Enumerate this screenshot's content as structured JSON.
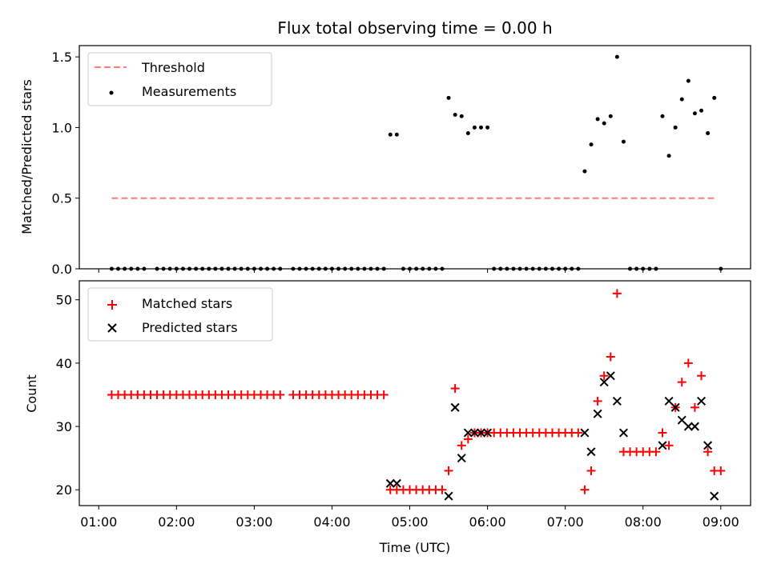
{
  "title": "Flux total observing time = 0.00 h",
  "top_panel": {
    "ylabel": "Matched/Predicted stars",
    "legend": {
      "threshold": "Threshold",
      "measurements": "Measurements"
    },
    "yticks": [
      "0.0",
      "0.5",
      "1.0",
      "1.5"
    ]
  },
  "bottom_panel": {
    "ylabel": "Count",
    "xlabel": "Time (UTC)",
    "legend": {
      "matched": "Matched stars",
      "predicted": "Predicted stars"
    },
    "yticks": [
      "20",
      "30",
      "40",
      "50"
    ],
    "xticks": [
      "01:00",
      "02:00",
      "03:00",
      "04:00",
      "05:00",
      "06:00",
      "07:00",
      "08:00",
      "09:00"
    ]
  },
  "colors": {
    "threshold": "#ff7f7f",
    "measurements": "#000000",
    "matched": "#ff0000",
    "predicted": "#000000"
  },
  "chart_data": [
    {
      "type": "scatter",
      "title": "Flux total observing time = 0.00 h",
      "xlabel": "",
      "ylabel": "Matched/Predicted stars",
      "xlim": [
        "00:45",
        "09:23"
      ],
      "ylim": [
        0,
        1.58
      ],
      "legend": "top-left",
      "threshold": {
        "name": "Threshold",
        "value": 0.5,
        "x": [
          "01:10",
          "08:55"
        ]
      },
      "series": [
        {
          "name": "Measurements",
          "points": [
            [
              "01:10",
              0
            ],
            [
              "01:15",
              0
            ],
            [
              "01:20",
              0
            ],
            [
              "01:25",
              0
            ],
            [
              "01:30",
              0
            ],
            [
              "01:35",
              0
            ],
            [
              "01:45",
              0
            ],
            [
              "01:50",
              0
            ],
            [
              "01:55",
              0
            ],
            [
              "02:00",
              0
            ],
            [
              "02:05",
              0
            ],
            [
              "02:10",
              0
            ],
            [
              "02:15",
              0
            ],
            [
              "02:20",
              0
            ],
            [
              "02:25",
              0
            ],
            [
              "02:30",
              0
            ],
            [
              "02:35",
              0
            ],
            [
              "02:40",
              0
            ],
            [
              "02:45",
              0
            ],
            [
              "02:50",
              0
            ],
            [
              "02:55",
              0
            ],
            [
              "03:00",
              0
            ],
            [
              "03:05",
              0
            ],
            [
              "03:10",
              0
            ],
            [
              "03:15",
              0
            ],
            [
              "03:20",
              0
            ],
            [
              "03:30",
              0
            ],
            [
              "03:35",
              0
            ],
            [
              "03:40",
              0
            ],
            [
              "03:45",
              0
            ],
            [
              "03:50",
              0
            ],
            [
              "03:55",
              0
            ],
            [
              "04:00",
              0
            ],
            [
              "04:05",
              0
            ],
            [
              "04:10",
              0
            ],
            [
              "04:15",
              0
            ],
            [
              "04:20",
              0
            ],
            [
              "04:25",
              0
            ],
            [
              "04:30",
              0
            ],
            [
              "04:35",
              0
            ],
            [
              "04:40",
              0
            ],
            [
              "04:45",
              0.95
            ],
            [
              "04:50",
              0.95
            ],
            [
              "04:55",
              0
            ],
            [
              "05:00",
              0
            ],
            [
              "05:05",
              0
            ],
            [
              "05:10",
              0
            ],
            [
              "05:15",
              0
            ],
            [
              "05:20",
              0
            ],
            [
              "05:25",
              0
            ],
            [
              "05:30",
              1.21
            ],
            [
              "05:35",
              1.09
            ],
            [
              "05:40",
              1.08
            ],
            [
              "05:45",
              0.96
            ],
            [
              "05:50",
              1.0
            ],
            [
              "05:55",
              1.0
            ],
            [
              "06:00",
              1.0
            ],
            [
              "06:05",
              0
            ],
            [
              "06:10",
              0
            ],
            [
              "06:15",
              0
            ],
            [
              "06:20",
              0
            ],
            [
              "06:25",
              0
            ],
            [
              "06:30",
              0
            ],
            [
              "06:35",
              0
            ],
            [
              "06:40",
              0
            ],
            [
              "06:45",
              0
            ],
            [
              "06:50",
              0
            ],
            [
              "06:55",
              0
            ],
            [
              "07:00",
              0
            ],
            [
              "07:05",
              0
            ],
            [
              "07:10",
              0
            ],
            [
              "07:15",
              0.69
            ],
            [
              "07:20",
              0.88
            ],
            [
              "07:25",
              1.06
            ],
            [
              "07:30",
              1.03
            ],
            [
              "07:35",
              1.08
            ],
            [
              "07:40",
              1.5
            ],
            [
              "07:45",
              0.9
            ],
            [
              "07:50",
              0
            ],
            [
              "07:55",
              0
            ],
            [
              "08:00",
              0
            ],
            [
              "08:05",
              0
            ],
            [
              "08:10",
              0
            ],
            [
              "08:15",
              1.08
            ],
            [
              "08:20",
              0.8
            ],
            [
              "08:25",
              1.0
            ],
            [
              "08:30",
              1.2
            ],
            [
              "08:35",
              1.33
            ],
            [
              "08:40",
              1.1
            ],
            [
              "08:45",
              1.12
            ],
            [
              "08:50",
              0.96
            ],
            [
              "08:55",
              1.21
            ],
            [
              "09:00",
              0
            ]
          ]
        }
      ]
    },
    {
      "type": "scatter",
      "title": "",
      "xlabel": "Time (UTC)",
      "ylabel": "Count",
      "xlim": [
        "00:45",
        "09:23"
      ],
      "ylim": [
        17.5,
        53
      ],
      "legend": "top-left",
      "series": [
        {
          "name": "Matched stars",
          "marker": "plus",
          "points": [
            [
              "01:10",
              35
            ],
            [
              "01:15",
              35
            ],
            [
              "01:20",
              35
            ],
            [
              "01:25",
              35
            ],
            [
              "01:30",
              35
            ],
            [
              "01:35",
              35
            ],
            [
              "01:40",
              35
            ],
            [
              "01:45",
              35
            ],
            [
              "01:50",
              35
            ],
            [
              "01:55",
              35
            ],
            [
              "02:00",
              35
            ],
            [
              "02:05",
              35
            ],
            [
              "02:10",
              35
            ],
            [
              "02:15",
              35
            ],
            [
              "02:20",
              35
            ],
            [
              "02:25",
              35
            ],
            [
              "02:30",
              35
            ],
            [
              "02:35",
              35
            ],
            [
              "02:40",
              35
            ],
            [
              "02:45",
              35
            ],
            [
              "02:50",
              35
            ],
            [
              "02:55",
              35
            ],
            [
              "03:00",
              35
            ],
            [
              "03:05",
              35
            ],
            [
              "03:10",
              35
            ],
            [
              "03:15",
              35
            ],
            [
              "03:20",
              35
            ],
            [
              "03:30",
              35
            ],
            [
              "03:35",
              35
            ],
            [
              "03:40",
              35
            ],
            [
              "03:45",
              35
            ],
            [
              "03:50",
              35
            ],
            [
              "03:55",
              35
            ],
            [
              "04:00",
              35
            ],
            [
              "04:05",
              35
            ],
            [
              "04:10",
              35
            ],
            [
              "04:15",
              35
            ],
            [
              "04:20",
              35
            ],
            [
              "04:25",
              35
            ],
            [
              "04:30",
              35
            ],
            [
              "04:35",
              35
            ],
            [
              "04:40",
              35
            ],
            [
              "04:45",
              20
            ],
            [
              "04:50",
              20
            ],
            [
              "04:55",
              20
            ],
            [
              "05:00",
              20
            ],
            [
              "05:05",
              20
            ],
            [
              "05:10",
              20
            ],
            [
              "05:15",
              20
            ],
            [
              "05:20",
              20
            ],
            [
              "05:25",
              20
            ],
            [
              "05:30",
              23
            ],
            [
              "05:35",
              36
            ],
            [
              "05:40",
              27
            ],
            [
              "05:45",
              28
            ],
            [
              "05:50",
              29
            ],
            [
              "05:55",
              29
            ],
            [
              "06:00",
              29
            ],
            [
              "06:05",
              29
            ],
            [
              "06:10",
              29
            ],
            [
              "06:15",
              29
            ],
            [
              "06:20",
              29
            ],
            [
              "06:25",
              29
            ],
            [
              "06:30",
              29
            ],
            [
              "06:35",
              29
            ],
            [
              "06:40",
              29
            ],
            [
              "06:45",
              29
            ],
            [
              "06:50",
              29
            ],
            [
              "06:55",
              29
            ],
            [
              "07:00",
              29
            ],
            [
              "07:05",
              29
            ],
            [
              "07:10",
              29
            ],
            [
              "07:15",
              20
            ],
            [
              "07:20",
              23
            ],
            [
              "07:25",
              34
            ],
            [
              "07:30",
              38
            ],
            [
              "07:35",
              41
            ],
            [
              "07:40",
              51
            ],
            [
              "07:45",
              26
            ],
            [
              "07:50",
              26
            ],
            [
              "07:55",
              26
            ],
            [
              "08:00",
              26
            ],
            [
              "08:05",
              26
            ],
            [
              "08:10",
              26
            ],
            [
              "08:15",
              29
            ],
            [
              "08:20",
              27
            ],
            [
              "08:25",
              33
            ],
            [
              "08:30",
              37
            ],
            [
              "08:35",
              40
            ],
            [
              "08:40",
              33
            ],
            [
              "08:45",
              38
            ],
            [
              "08:50",
              26
            ],
            [
              "08:55",
              23
            ],
            [
              "09:00",
              23
            ]
          ]
        },
        {
          "name": "Predicted stars",
          "marker": "x",
          "points": [
            [
              "04:45",
              21
            ],
            [
              "04:50",
              21
            ],
            [
              "05:30",
              19
            ],
            [
              "05:35",
              33
            ],
            [
              "05:40",
              25
            ],
            [
              "05:45",
              29
            ],
            [
              "05:50",
              29
            ],
            [
              "05:55",
              29
            ],
            [
              "06:00",
              29
            ],
            [
              "07:15",
              29
            ],
            [
              "07:20",
              26
            ],
            [
              "07:25",
              32
            ],
            [
              "07:30",
              37
            ],
            [
              "07:35",
              38
            ],
            [
              "07:40",
              34
            ],
            [
              "07:45",
              29
            ],
            [
              "08:15",
              27
            ],
            [
              "08:20",
              34
            ],
            [
              "08:25",
              33
            ],
            [
              "08:30",
              31
            ],
            [
              "08:35",
              30
            ],
            [
              "08:40",
              30
            ],
            [
              "08:45",
              34
            ],
            [
              "08:50",
              27
            ],
            [
              "08:55",
              19
            ]
          ]
        }
      ]
    }
  ]
}
